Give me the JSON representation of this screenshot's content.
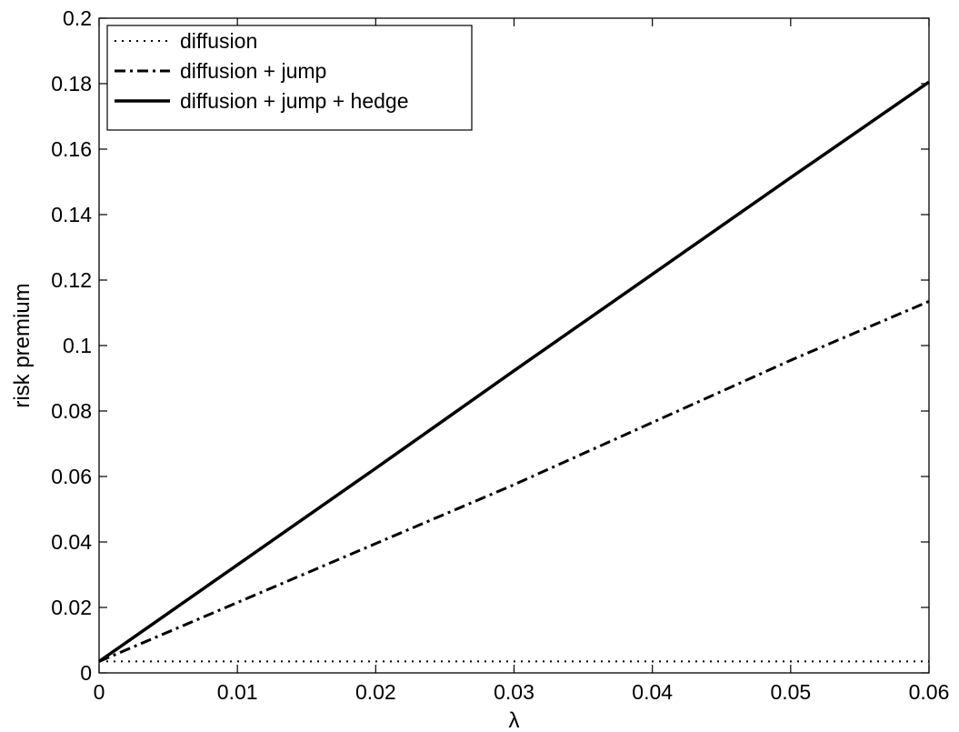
{
  "chart_data": {
    "type": "line",
    "title": "",
    "xlabel": "λ",
    "ylabel": "risk premium",
    "xlim": [
      0,
      0.06
    ],
    "ylim": [
      0,
      0.2
    ],
    "xticks": [
      0,
      0.01,
      0.02,
      0.03,
      0.04,
      0.05,
      0.06
    ],
    "xtick_labels": [
      "0",
      "0.01",
      "0.02",
      "0.03",
      "0.04",
      "0.05",
      "0.06"
    ],
    "yticks": [
      0,
      0.02,
      0.04,
      0.06,
      0.08,
      0.1,
      0.12,
      0.14,
      0.16,
      0.18,
      0.2
    ],
    "ytick_labels": [
      "0",
      "0.02",
      "0.04",
      "0.06",
      "0.08",
      "0.1",
      "0.12",
      "0.14",
      "0.16",
      "0.18",
      "0.2"
    ],
    "grid": false,
    "legend_position": "top-left",
    "series": [
      {
        "name": "diffusion",
        "style": "dotted",
        "color": "#000000",
        "x": [
          0,
          0.06
        ],
        "y": [
          0.0035,
          0.0035
        ]
      },
      {
        "name": "diffusion + jump",
        "style": "dashdot",
        "color": "#000000",
        "x": [
          0,
          0.01,
          0.02,
          0.03,
          0.04,
          0.05,
          0.06
        ],
        "y": [
          0.0035,
          0.0215,
          0.0395,
          0.0575,
          0.0765,
          0.0955,
          0.1135
        ]
      },
      {
        "name": "diffusion + jump + hedge",
        "style": "solid",
        "color": "#000000",
        "x": [
          0,
          0.01,
          0.02,
          0.03,
          0.04,
          0.05,
          0.06
        ],
        "y": [
          0.0035,
          0.033,
          0.0625,
          0.0923,
          0.1218,
          0.1513,
          0.1805
        ]
      }
    ]
  }
}
